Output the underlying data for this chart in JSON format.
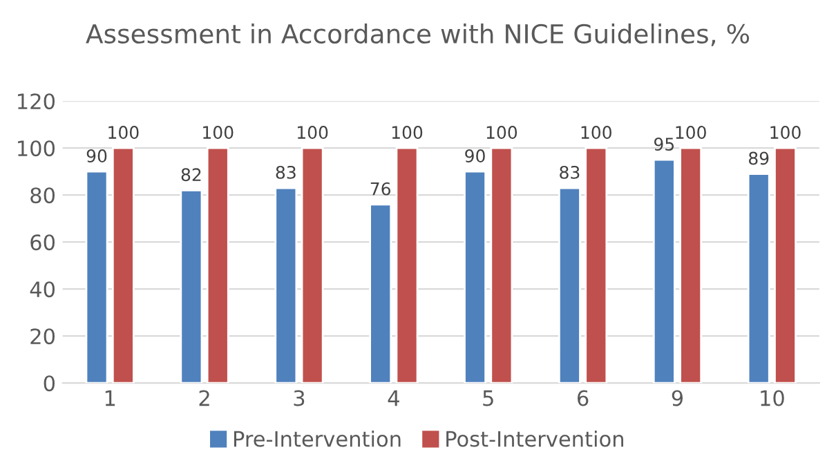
{
  "chart_data": {
    "type": "bar",
    "title": "Assessment in Accordance with NICE Guidelines, %",
    "categories": [
      "1",
      "2",
      "3",
      "4",
      "5",
      "6",
      "9",
      "10"
    ],
    "series": [
      {
        "name": "Pre-Intervention",
        "color": "#4f81bd",
        "values": [
          90,
          82,
          83,
          76,
          90,
          83,
          95,
          89
        ]
      },
      {
        "name": "Post-Intervention",
        "color": "#c0504d",
        "values": [
          100,
          100,
          100,
          100,
          100,
          100,
          100,
          100
        ]
      }
    ],
    "ylim": [
      0,
      120
    ],
    "yticks": [
      0,
      20,
      40,
      60,
      80,
      100,
      120
    ],
    "grid": "y",
    "legend": "bottom",
    "data_labels": true
  }
}
